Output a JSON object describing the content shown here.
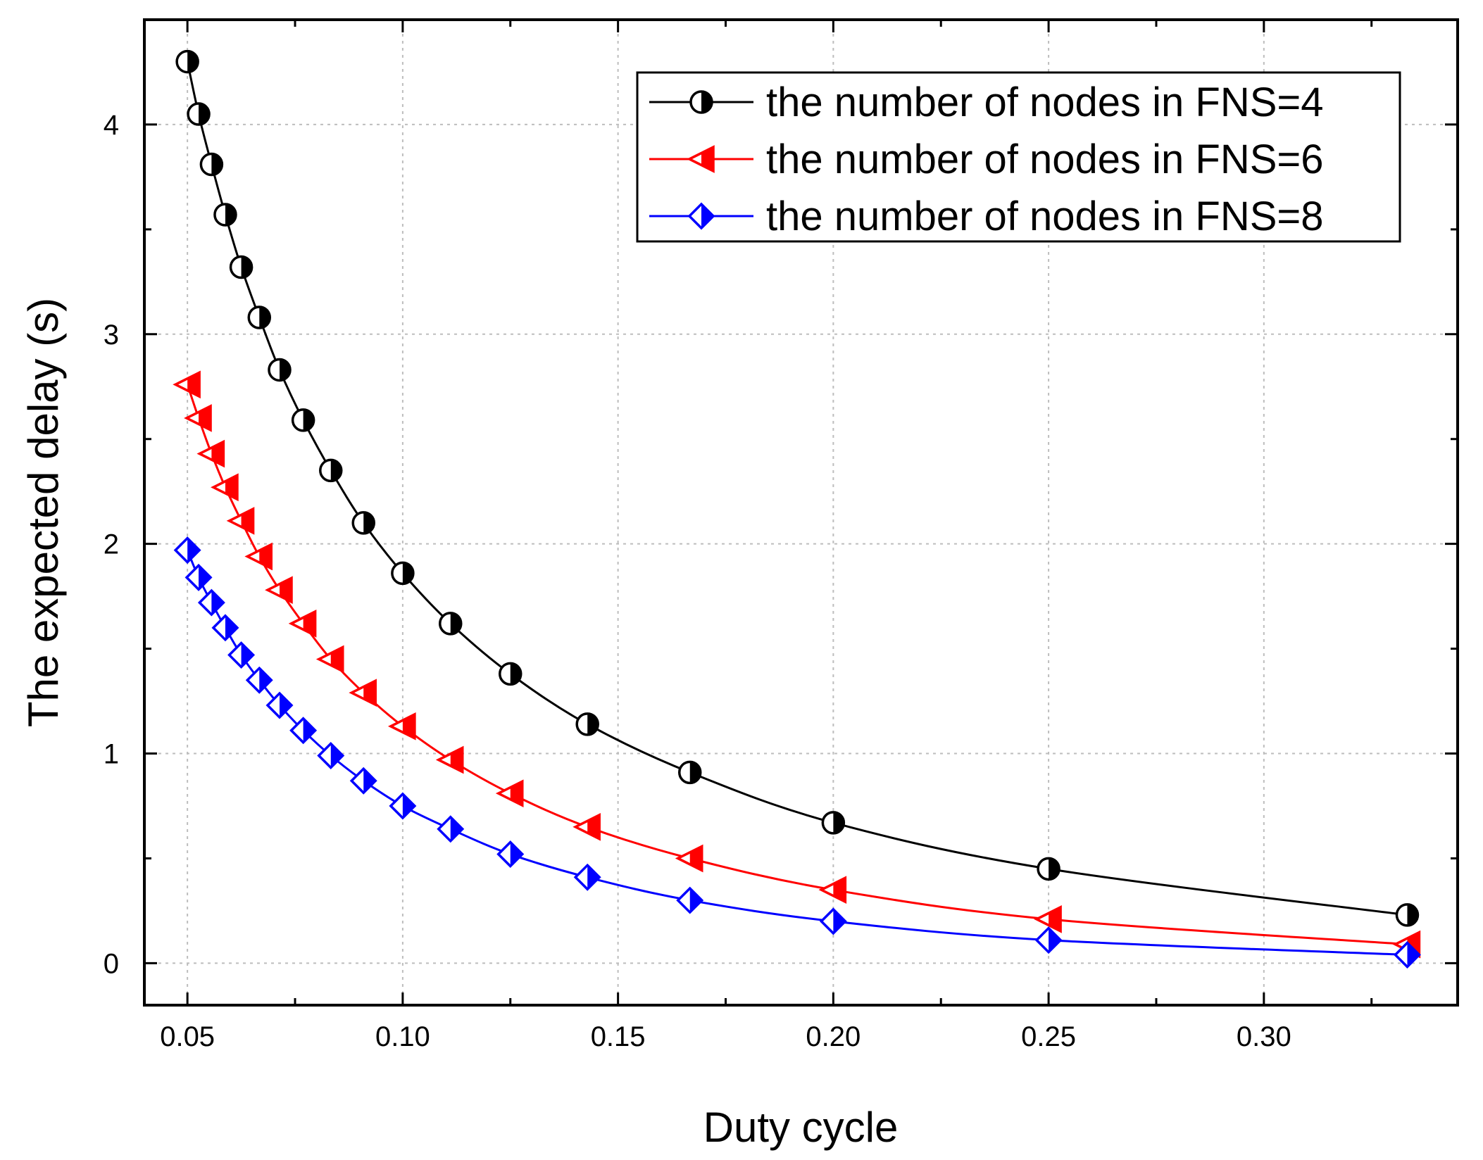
{
  "chart_data": {
    "type": "line",
    "title": "",
    "xlabel": "Duty cycle",
    "ylabel": "The expected delay (s)",
    "xlim": [
      0.04,
      0.345
    ],
    "ylim": [
      -0.2,
      4.5
    ],
    "xticks": [
      0.05,
      0.1,
      0.15,
      0.2,
      0.25,
      0.3
    ],
    "xtick_labels": [
      "0.05",
      "0.10",
      "0.15",
      "0.20",
      "0.25",
      "0.30"
    ],
    "yticks": [
      0,
      1,
      2,
      3,
      4
    ],
    "ytick_labels": [
      "0",
      "1",
      "2",
      "3",
      "4"
    ],
    "grid": true,
    "legend_position": "top-right",
    "x": [
      0.05,
      0.0526,
      0.0556,
      0.0588,
      0.0625,
      0.0667,
      0.0714,
      0.0769,
      0.0833,
      0.0909,
      0.1,
      0.1111,
      0.125,
      0.1429,
      0.1667,
      0.2,
      0.25,
      0.3333
    ],
    "series": [
      {
        "name": "the number of nodes in FNS=4",
        "color": "#000000",
        "marker": "half-filled-circle",
        "values": [
          4.3,
          4.05,
          3.81,
          3.57,
          3.32,
          3.08,
          2.83,
          2.59,
          2.35,
          2.1,
          1.86,
          1.62,
          1.38,
          1.14,
          0.91,
          0.67,
          0.45,
          0.23
        ]
      },
      {
        "name": "the number of nodes in FNS=6",
        "color": "#ff0000",
        "marker": "half-filled-left-triangle",
        "values": [
          2.76,
          2.6,
          2.43,
          2.27,
          2.11,
          1.94,
          1.78,
          1.62,
          1.45,
          1.29,
          1.13,
          0.97,
          0.81,
          0.65,
          0.5,
          0.35,
          0.21,
          0.09
        ]
      },
      {
        "name": "the number of nodes in FNS=8",
        "color": "#0000ff",
        "marker": "half-filled-diamond",
        "values": [
          1.97,
          1.84,
          1.72,
          1.6,
          1.47,
          1.35,
          1.23,
          1.11,
          0.99,
          0.87,
          0.75,
          0.64,
          0.52,
          0.41,
          0.3,
          0.2,
          0.11,
          0.04
        ]
      }
    ]
  }
}
